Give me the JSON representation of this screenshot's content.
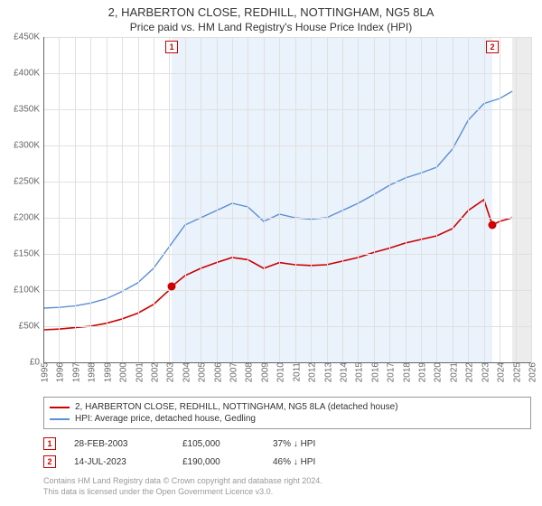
{
  "title_line1": "2, HARBERTON CLOSE, REDHILL, NOTTINGHAM, NG5 8LA",
  "title_line2": "Price paid vs. HM Land Registry's House Price Index (HPI)",
  "chart": {
    "type": "line",
    "background_color": "#ffffff",
    "grid_color": "#e0e0e0",
    "axis_color": "#666666",
    "label_fontsize": 10,
    "ylim": [
      0,
      450000
    ],
    "ytick_step": 50000,
    "yticks": [
      "£0",
      "£50K",
      "£100K",
      "£150K",
      "£200K",
      "£250K",
      "£300K",
      "£350K",
      "£400K",
      "£450K"
    ],
    "xlim": [
      1995,
      2026
    ],
    "xticks": [
      1995,
      1996,
      1997,
      1998,
      1999,
      2000,
      2001,
      2002,
      2003,
      2004,
      2005,
      2006,
      2007,
      2008,
      2009,
      2010,
      2011,
      2012,
      2013,
      2014,
      2015,
      2016,
      2017,
      2018,
      2019,
      2020,
      2021,
      2022,
      2023,
      2024,
      2025,
      2026
    ],
    "shaded_bands": [
      {
        "from": 2003.16,
        "to": 2023.53,
        "color": "#eaf2fb"
      },
      {
        "from": 2024.8,
        "to": 2026,
        "color": "#ececec"
      }
    ],
    "series": [
      {
        "name": "property_price",
        "color": "#cc0000",
        "line_width": 1.6,
        "points": [
          [
            1995,
            45000
          ],
          [
            1996,
            46000
          ],
          [
            1997,
            48000
          ],
          [
            1998,
            50000
          ],
          [
            1999,
            54000
          ],
          [
            2000,
            60000
          ],
          [
            2001,
            68000
          ],
          [
            2002,
            80000
          ],
          [
            2003,
            100000
          ],
          [
            2003.16,
            105000
          ],
          [
            2004,
            120000
          ],
          [
            2005,
            130000
          ],
          [
            2006,
            138000
          ],
          [
            2007,
            145000
          ],
          [
            2008,
            142000
          ],
          [
            2009,
            130000
          ],
          [
            2010,
            138000
          ],
          [
            2011,
            135000
          ],
          [
            2012,
            134000
          ],
          [
            2013,
            135000
          ],
          [
            2014,
            140000
          ],
          [
            2015,
            145000
          ],
          [
            2016,
            152000
          ],
          [
            2017,
            158000
          ],
          [
            2018,
            165000
          ],
          [
            2019,
            170000
          ],
          [
            2020,
            175000
          ],
          [
            2021,
            185000
          ],
          [
            2022,
            210000
          ],
          [
            2023,
            225000
          ],
          [
            2023.53,
            190000
          ],
          [
            2024,
            195000
          ],
          [
            2024.8,
            200000
          ]
        ]
      },
      {
        "name": "hpi_gedling",
        "color": "#5b8fd6",
        "line_width": 1.4,
        "points": [
          [
            1995,
            75000
          ],
          [
            1996,
            76000
          ],
          [
            1997,
            78000
          ],
          [
            1998,
            82000
          ],
          [
            1999,
            88000
          ],
          [
            2000,
            98000
          ],
          [
            2001,
            110000
          ],
          [
            2002,
            130000
          ],
          [
            2003,
            160000
          ],
          [
            2004,
            190000
          ],
          [
            2005,
            200000
          ],
          [
            2006,
            210000
          ],
          [
            2007,
            220000
          ],
          [
            2008,
            215000
          ],
          [
            2009,
            195000
          ],
          [
            2010,
            205000
          ],
          [
            2011,
            200000
          ],
          [
            2012,
            198000
          ],
          [
            2013,
            200000
          ],
          [
            2014,
            210000
          ],
          [
            2015,
            220000
          ],
          [
            2016,
            232000
          ],
          [
            2017,
            245000
          ],
          [
            2018,
            255000
          ],
          [
            2019,
            262000
          ],
          [
            2020,
            270000
          ],
          [
            2021,
            295000
          ],
          [
            2022,
            335000
          ],
          [
            2023,
            358000
          ],
          [
            2024,
            365000
          ],
          [
            2024.8,
            375000
          ]
        ]
      }
    ],
    "sale_markers": [
      {
        "num": "1",
        "x": 2003.16,
        "y": 105000,
        "box_color": "#cc0000",
        "dot_color": "#cc0000"
      },
      {
        "num": "2",
        "x": 2023.53,
        "y": 190000,
        "box_color": "#cc0000",
        "dot_color": "#cc0000"
      }
    ]
  },
  "legend": {
    "items": [
      {
        "color": "#cc0000",
        "label": "2, HARBERTON CLOSE, REDHILL, NOTTINGHAM, NG5 8LA (detached house)"
      },
      {
        "color": "#5b8fd6",
        "label": "HPI: Average price, detached house, Gedling"
      }
    ]
  },
  "sales_table": [
    {
      "num": "1",
      "color": "#cc0000",
      "date": "28-FEB-2003",
      "price": "£105,000",
      "pct": "37% ↓ HPI"
    },
    {
      "num": "2",
      "color": "#cc0000",
      "date": "14-JUL-2023",
      "price": "£190,000",
      "pct": "46% ↓ HPI"
    }
  ],
  "license_line1": "Contains HM Land Registry data © Crown copyright and database right 2024.",
  "license_line2": "This data is licensed under the Open Government Licence v3.0."
}
